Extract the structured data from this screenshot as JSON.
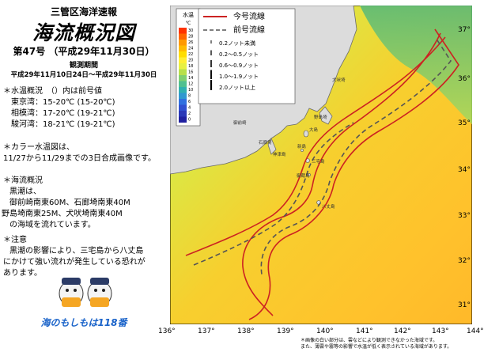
{
  "header": {
    "agency": "三管区海洋速報",
    "title": "海流概況図",
    "issue": "第47号 （平成29年11月30日）",
    "period_label": "観測期間",
    "period": "平成29年11月10日24日〜平成29年11月30日"
  },
  "water_temp": {
    "heading": "＊水温概況　（）内は前号値",
    "rows": [
      "東京湾：15-20℃ (15-20℃)",
      "相模湾：17-20℃ (19-21℃)",
      "駿河湾：18-21℃ (19-21℃)"
    ]
  },
  "color_map_note": [
    "＊カラー水温図は、",
    "11/27から11/29までの3日合成画像です。"
  ],
  "currents": {
    "heading": "＊海流概況",
    "lines": [
      "黒潮は、",
      "御前崎南東60M、石廊埼南東40M",
      "野島埼南東25M、犬吠埼南東40M",
      "の海域を流れています。"
    ]
  },
  "caution": {
    "heading": "＊注意",
    "lines": [
      "黒潮の影響により、三宅島から八丈島",
      "にかけて強い流れが発生している恐れが",
      "あります。"
    ]
  },
  "slogan": "海のもしもは118番",
  "map": {
    "colorbar_label": "水温",
    "colorbar_unit": "℃",
    "colorbar_ticks": [
      "30",
      "28",
      "26",
      "24",
      "22",
      "20",
      "18",
      "16",
      "14",
      "12",
      "10",
      "8",
      "6",
      "4",
      "2",
      "0"
    ],
    "colorbar_colors": [
      "#ff3300",
      "#ff6600",
      "#ff9900",
      "#ffbb00",
      "#ffdd00",
      "#ffee33",
      "#e8f040",
      "#b8e04a",
      "#80d070",
      "#50c090",
      "#30b0b0",
      "#3098d0",
      "#3070e0",
      "#3050d0",
      "#2a38b8",
      "#2020a0"
    ],
    "legend": {
      "current_label": "今号流線",
      "previous_label": "前号流線",
      "speed_items": [
        "0.2ノット未満",
        "0.2〜0.5ノット",
        "0.6〜0.9ノット",
        "1.0〜1.9ノット",
        "2.0ノット以上"
      ]
    },
    "lon_ticks": [
      "136°",
      "137°",
      "138°",
      "139°",
      "140°",
      "141°",
      "142°",
      "143°",
      "144°"
    ],
    "lat_ticks": [
      "37°",
      "36°",
      "35°",
      "34°",
      "33°",
      "32°",
      "31°"
    ],
    "place_labels": [
      "大島",
      "新島",
      "三宅島",
      "御蔵島",
      "八丈島",
      "神津島",
      "犬吠埼",
      "野島埼",
      "石廊埼",
      "御前崎"
    ],
    "colors": {
      "land": "#dcdcdc",
      "sea_warm": "#ffcc33",
      "sea_yellow": "#f2ee38",
      "sea_green": "#9fd96a",
      "current_line": "#cc2222"
    }
  },
  "footnotes": [
    "＊画像の白い部分は、雲などにより観測できなかった海域です。",
    "また、薄雲や霧等の影響で水温が低く表示されている海域があります。"
  ]
}
